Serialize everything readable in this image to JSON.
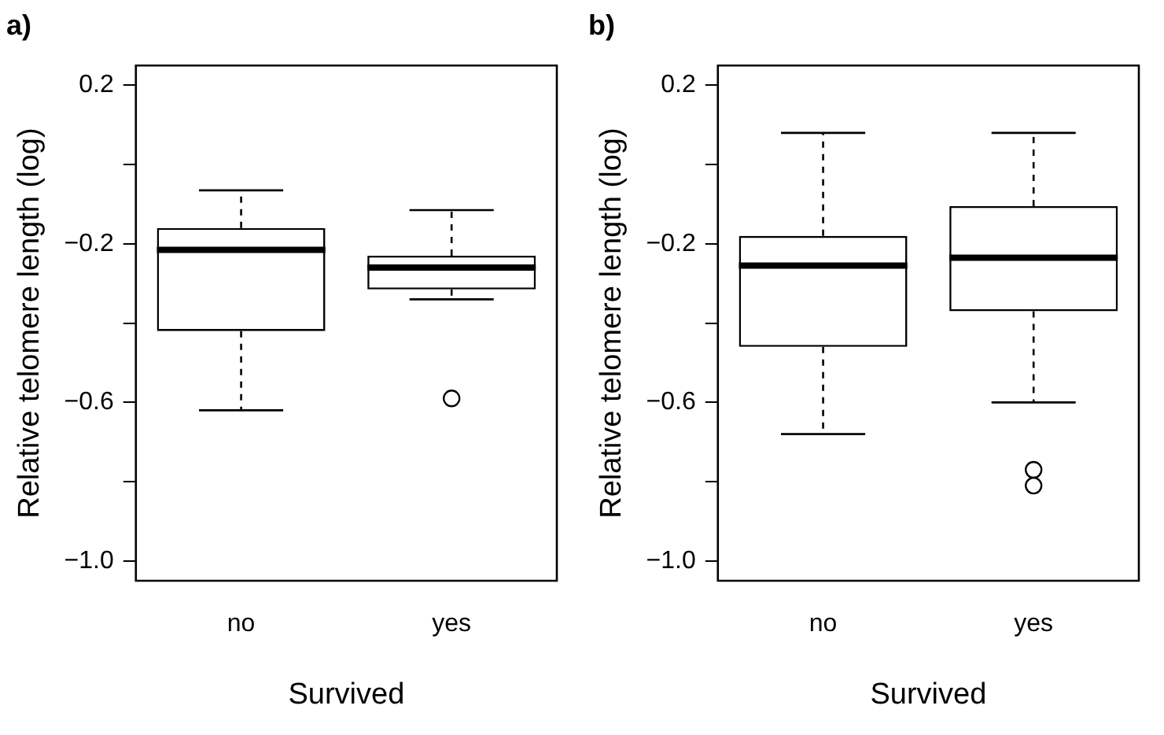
{
  "chart_data": [
    {
      "type": "box",
      "title": "a)",
      "xlabel": "Survived",
      "ylabel": "Relative telomere length (log)",
      "categories": [
        "no",
        "yes"
      ],
      "boxes": [
        {
          "low": -0.62,
          "q1": -0.42,
          "median": -0.215,
          "q3": -0.16,
          "high": -0.065
        },
        {
          "low": -0.34,
          "q1": -0.315,
          "median": -0.26,
          "q3": -0.23,
          "high": -0.115,
          "outliers": [
            -0.59
          ]
        }
      ],
      "ylim": [
        -1.05,
        0.25
      ],
      "yticks": [
        0.2,
        {
          "value": 0,
          "label": null
        },
        {
          "value": -0.2,
          "label": "−0.2"
        },
        {
          "value": -0.4,
          "label": null
        },
        {
          "value": -0.6,
          "label": "−0.6"
        },
        {
          "value": -0.8,
          "label": null
        },
        {
          "value": -1.0,
          "label": "−1.0"
        }
      ],
      "grid": false
    },
    {
      "type": "box",
      "title": "b)",
      "xlabel": "Survived",
      "ylabel": "Relative telomere length (log)",
      "categories": [
        "no",
        "yes"
      ],
      "boxes": [
        {
          "low": -0.68,
          "q1": -0.46,
          "median": -0.255,
          "q3": -0.18,
          "high": 0.08
        },
        {
          "low": -0.6,
          "q1": -0.37,
          "median": -0.235,
          "q3": -0.105,
          "high": 0.08,
          "outliers": [
            -0.77,
            -0.81
          ]
        }
      ],
      "ylim": [
        -1.05,
        0.25
      ],
      "yticks": [
        0.2,
        {
          "value": 0,
          "label": null
        },
        {
          "value": -0.2,
          "label": "−0.2"
        },
        {
          "value": -0.4,
          "label": null
        },
        {
          "value": -0.6,
          "label": "−0.6"
        },
        {
          "value": -0.8,
          "label": null
        },
        {
          "value": -1.0,
          "label": "−1.0"
        }
      ],
      "grid": false
    }
  ]
}
